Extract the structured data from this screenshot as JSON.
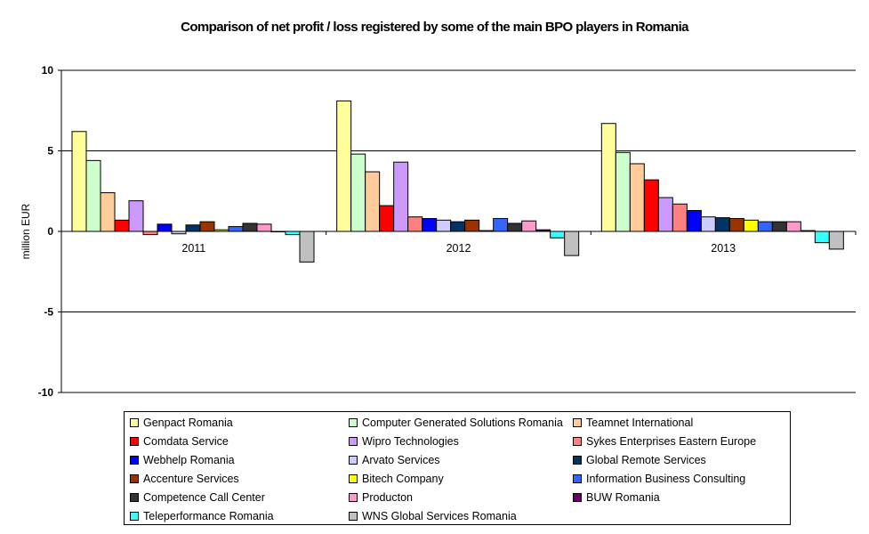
{
  "chart_data": {
    "type": "bar",
    "title": "Comparison of net profit / loss registered by some of the main BPO players in Romania",
    "xlabel": "",
    "ylabel": "million EUR",
    "ylim": [
      -10,
      10
    ],
    "yticks": [
      10,
      5,
      0,
      -5,
      -10
    ],
    "ytick_labels": [
      "10",
      "5",
      "0",
      "-5",
      "-10"
    ],
    "grid": true,
    "legend_position": "bottom",
    "categories": [
      "2011",
      "2012",
      "2013"
    ],
    "series": [
      {
        "name": "Genpact Romania",
        "color": "#FFFF99",
        "values": [
          6.2,
          8.1,
          6.7
        ]
      },
      {
        "name": "Computer Generated Solutions Romania",
        "color": "#CCFFCC",
        "values": [
          4.4,
          4.8,
          4.9
        ]
      },
      {
        "name": "Teamnet International",
        "color": "#FFCC99",
        "values": [
          2.4,
          3.7,
          4.2
        ]
      },
      {
        "name": "Comdata Service",
        "color": "#FF0000",
        "values": [
          0.7,
          1.6,
          3.2
        ]
      },
      {
        "name": "Wipro Technologies",
        "color": "#CC99FF",
        "values": [
          1.9,
          4.3,
          2.1
        ]
      },
      {
        "name": "Sykes Enterprises Eastern Europe",
        "color": "#FF8080",
        "values": [
          -0.2,
          0.9,
          1.7
        ]
      },
      {
        "name": "Webhelp Romania",
        "color": "#0000FF",
        "values": [
          0.45,
          0.8,
          1.3
        ]
      },
      {
        "name": "Arvato Services",
        "color": "#CCCCFF",
        "values": [
          -0.15,
          0.7,
          0.9
        ]
      },
      {
        "name": "Global Remote Services",
        "color": "#003366",
        "values": [
          0.4,
          0.6,
          0.85
        ]
      },
      {
        "name": "Accenture Services",
        "color": "#993300",
        "values": [
          0.6,
          0.7,
          0.8
        ]
      },
      {
        "name": "Bitech Company",
        "color": "#FFFF00",
        "values": [
          0.1,
          0.05,
          0.7
        ]
      },
      {
        "name": "Information Business Consulting",
        "color": "#3366FF",
        "values": [
          0.3,
          0.8,
          0.6
        ]
      },
      {
        "name": "Competence Call Center",
        "color": "#333333",
        "values": [
          0.5,
          0.5,
          0.6
        ]
      },
      {
        "name": "Producton",
        "color": "#FF99CC",
        "values": [
          0.45,
          0.65,
          0.6
        ]
      },
      {
        "name": "BUW Romania",
        "color": "#660066",
        "values": [
          0.0,
          0.1,
          0.05
        ]
      },
      {
        "name": "Teleperformance Romania",
        "color": "#33FFFF",
        "values": [
          -0.2,
          -0.4,
          -0.7
        ]
      },
      {
        "name": "WNS Global Services Romania",
        "color": "#C0C0C0",
        "values": [
          -1.9,
          -1.5,
          -1.1
        ]
      }
    ]
  }
}
